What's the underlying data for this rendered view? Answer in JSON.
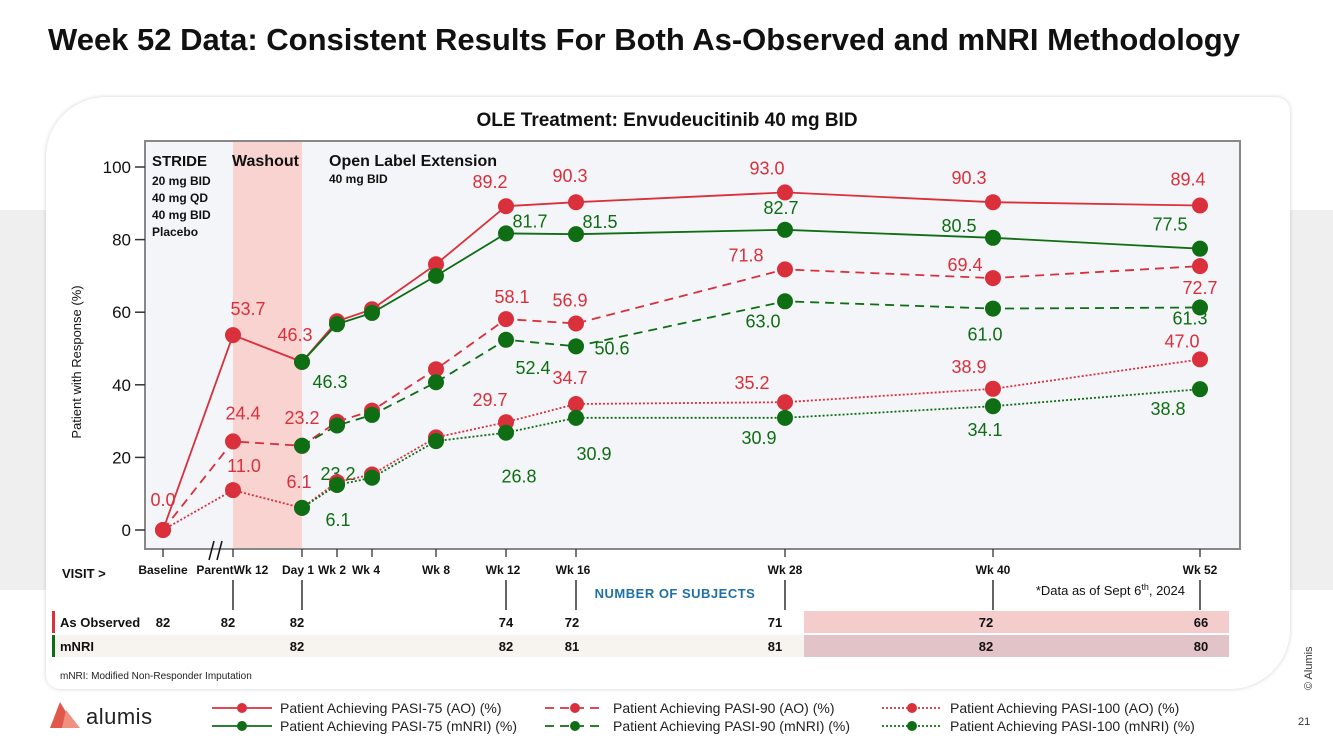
{
  "title": "Week 52 Data: Consistent Results For Both As-Observed and mNRI Methodology",
  "chart_data": {
    "type": "line",
    "title": "OLE Treatment: Envudeucitinib 40 mg BID",
    "ylabel": "Patient with Response (%)",
    "ylim": [
      0,
      100
    ],
    "yticks": [
      "0",
      "20",
      "40",
      "60",
      "80",
      "100"
    ],
    "visit_label": "VISIT >",
    "categories": [
      "Baseline",
      "Parent Wk 12",
      "Day 1",
      "Wk 2",
      "Wk 4",
      "Wk 8",
      "Wk 12",
      "Wk 16",
      "Wk 28",
      "Wk 40",
      "Wk 52"
    ],
    "annotations": {
      "stride": "STRIDE",
      "stride_doses": [
        "20 mg BID",
        "40 mg QD",
        "40 mg BID",
        "Placebo"
      ],
      "washout": "Washout",
      "ole": "Open Label Extension",
      "ole_dose": "40 mg BID"
    },
    "series": [
      {
        "name": "Patient Achieving PASI-75 (AO) (%)",
        "color": "#d9303c",
        "style": "solid",
        "points": [
          [
            0,
            0.0
          ],
          [
            1,
            53.7
          ],
          [
            2,
            46.3
          ],
          [
            3,
            57.5
          ],
          [
            4,
            60.8
          ],
          [
            5,
            73.2
          ],
          [
            6,
            89.2
          ],
          [
            7,
            90.3
          ],
          [
            8,
            93.0
          ],
          [
            9,
            90.3
          ],
          [
            10,
            89.4
          ]
        ],
        "labels": {
          "0": "0.0",
          "1": "53.7",
          "2": "46.3",
          "6": "89.2",
          "7": "90.3",
          "8": "93.0",
          "9": "90.3",
          "10": "89.4"
        }
      },
      {
        "name": "Patient Achieving PASI-75 (mNRI) (%)",
        "color": "#0f6d14",
        "style": "solid",
        "points": [
          [
            2,
            46.3
          ],
          [
            3,
            56.7
          ],
          [
            4,
            59.8
          ],
          [
            5,
            70.0
          ],
          [
            6,
            81.7
          ],
          [
            7,
            81.5
          ],
          [
            8,
            82.7
          ],
          [
            9,
            80.5
          ],
          [
            10,
            77.5
          ]
        ],
        "labels": {
          "2": "46.3",
          "6": "81.7",
          "7": "81.5",
          "8": "82.7",
          "9": "80.5",
          "10": "77.5"
        }
      },
      {
        "name": "Patient Achieving PASI-90 (AO) (%)",
        "color": "#d9303c",
        "style": "dashed",
        "points": [
          [
            0,
            0.0
          ],
          [
            1,
            24.4
          ],
          [
            2,
            23.2
          ],
          [
            3,
            29.8
          ],
          [
            4,
            32.9
          ],
          [
            5,
            44.3
          ],
          [
            6,
            58.1
          ],
          [
            7,
            56.9
          ],
          [
            8,
            71.8
          ],
          [
            9,
            69.4
          ],
          [
            10,
            72.7
          ]
        ],
        "labels": {
          "1": "24.4",
          "2": "23.2",
          "6": "58.1",
          "7": "56.9",
          "8": "71.8",
          "9": "69.4",
          "10": "72.7"
        }
      },
      {
        "name": "Patient Achieving PASI-90 (mNRI) (%)",
        "color": "#0f6d14",
        "style": "dashed",
        "points": [
          [
            2,
            23.2
          ],
          [
            3,
            28.8
          ],
          [
            4,
            31.7
          ],
          [
            5,
            40.7
          ],
          [
            6,
            52.4
          ],
          [
            7,
            50.6
          ],
          [
            8,
            63.0
          ],
          [
            9,
            61.0
          ],
          [
            10,
            61.3
          ]
        ],
        "labels": {
          "2": "23.2",
          "6": "52.4",
          "7": "50.6",
          "8": "63.0",
          "9": "61.0",
          "10": "61.3"
        }
      },
      {
        "name": "Patient Achieving PASI-100 (AO) (%)",
        "color": "#d9303c",
        "style": "dotted",
        "points": [
          [
            0,
            0.0
          ],
          [
            1,
            11.0
          ],
          [
            2,
            6.1
          ],
          [
            3,
            13.2
          ],
          [
            4,
            15.3
          ],
          [
            5,
            25.5
          ],
          [
            6,
            29.7
          ],
          [
            7,
            34.7
          ],
          [
            8,
            35.2
          ],
          [
            9,
            38.9
          ],
          [
            10,
            47.0
          ]
        ],
        "labels": {
          "1": "11.0",
          "2": "6.1",
          "6": "29.7",
          "7": "34.7",
          "8": "35.2",
          "9": "38.9",
          "10": "47.0"
        }
      },
      {
        "name": "Patient Achieving PASI-100 (mNRI) (%)",
        "color": "#0f6d14",
        "style": "dotted",
        "points": [
          [
            2,
            6.1
          ],
          [
            3,
            12.4
          ],
          [
            4,
            14.4
          ],
          [
            5,
            24.5
          ],
          [
            6,
            26.8
          ],
          [
            7,
            30.9
          ],
          [
            8,
            30.9
          ],
          [
            9,
            34.1
          ],
          [
            10,
            38.8
          ]
        ],
        "labels": {
          "2": "6.1",
          "6": "26.8",
          "7": "30.9",
          "8": "30.9",
          "9": "34.1",
          "10": "38.8"
        }
      }
    ],
    "subjects": {
      "header": "NUMBER OF SUBJECTS",
      "as_observed_label": "As Observed",
      "as_observed": {
        "0": "82",
        "1": "82",
        "2": "82",
        "6": "74",
        "7": "72",
        "8": "71",
        "9": "72",
        "10": "66"
      },
      "mnri_label": "mNRI",
      "mnri": {
        "2": "82",
        "6": "82",
        "7": "81",
        "8": "81",
        "9": "82",
        "10": "80"
      }
    },
    "data_note": "*Data as of Sept 6",
    "data_note_sup": "th",
    "data_note_year": ", 2024"
  },
  "footnote": "mNRI: Modified Non-Responder Imputation",
  "copyright": "© Alumis",
  "page_number": "21",
  "logo_text": "alumis",
  "colors": {
    "ao": "#d9303c",
    "mnri": "#0f6d14",
    "washout": "#f9d3d0",
    "plot_bg": "#f3f5f8",
    "subject_header": "#1f6fa8"
  }
}
